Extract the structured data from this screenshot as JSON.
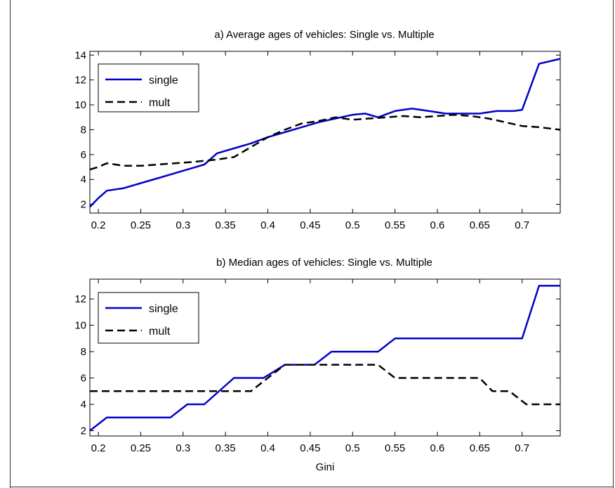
{
  "colors": {
    "single": "#0000c8",
    "mult": "#000000",
    "axis": "#000000",
    "background": "#ffffff"
  },
  "chart_data": [
    {
      "type": "line",
      "title": "a) Average ages of vehicles: Single vs. Multiple",
      "xlabel": "",
      "ylabel": "",
      "xlim": [
        0.19,
        0.745
      ],
      "ylim": [
        1.3,
        14.3
      ],
      "xticks": [
        0.2,
        0.25,
        0.3,
        0.35,
        0.4,
        0.45,
        0.5,
        0.55,
        0.6,
        0.65,
        0.7
      ],
      "xtick_labels": [
        "0.2",
        "0.25",
        "0.3",
        "0.35",
        "0.4",
        "0.45",
        "0.5",
        "0.55",
        "0.6",
        "0.65",
        "0.7"
      ],
      "yticks": [
        2,
        4,
        6,
        8,
        10,
        12,
        14
      ],
      "ytick_labels": [
        "2",
        "4",
        "6",
        "8",
        "10",
        "12",
        "14"
      ],
      "grid": false,
      "legend": {
        "location": "top-left",
        "entries": [
          "single",
          "mult"
        ]
      },
      "series": [
        {
          "name": "single",
          "style": "solid",
          "x": [
            0.19,
            0.2,
            0.21,
            0.23,
            0.25,
            0.27,
            0.29,
            0.31,
            0.325,
            0.34,
            0.36,
            0.38,
            0.4,
            0.42,
            0.44,
            0.46,
            0.48,
            0.5,
            0.515,
            0.53,
            0.55,
            0.57,
            0.59,
            0.61,
            0.63,
            0.65,
            0.67,
            0.69,
            0.7,
            0.72,
            0.745
          ],
          "y": [
            1.8,
            2.5,
            3.1,
            3.3,
            3.7,
            4.1,
            4.5,
            4.9,
            5.2,
            6.1,
            6.5,
            6.9,
            7.4,
            7.8,
            8.2,
            8.6,
            8.9,
            9.2,
            9.3,
            9.0,
            9.5,
            9.7,
            9.5,
            9.3,
            9.3,
            9.3,
            9.5,
            9.5,
            9.6,
            13.3,
            13.7
          ]
        },
        {
          "name": "mult",
          "style": "dashed",
          "x": [
            0.19,
            0.2,
            0.21,
            0.23,
            0.25,
            0.27,
            0.29,
            0.31,
            0.325,
            0.34,
            0.36,
            0.38,
            0.4,
            0.42,
            0.44,
            0.46,
            0.48,
            0.5,
            0.52,
            0.54,
            0.56,
            0.58,
            0.6,
            0.62,
            0.64,
            0.66,
            0.68,
            0.7,
            0.72,
            0.745
          ],
          "y": [
            4.8,
            5.0,
            5.3,
            5.1,
            5.1,
            5.2,
            5.3,
            5.4,
            5.5,
            5.6,
            5.8,
            6.6,
            7.4,
            8.0,
            8.5,
            8.7,
            9.0,
            8.8,
            8.9,
            9.0,
            9.1,
            9.0,
            9.1,
            9.2,
            9.1,
            8.9,
            8.6,
            8.3,
            8.2,
            8.0
          ]
        }
      ]
    },
    {
      "type": "line",
      "title": "b) Median ages of vehicles: Single vs. Multiple",
      "xlabel": "Gini",
      "ylabel": "",
      "xlim": [
        0.19,
        0.745
      ],
      "ylim": [
        1.6,
        13.5
      ],
      "xticks": [
        0.2,
        0.25,
        0.3,
        0.35,
        0.4,
        0.45,
        0.5,
        0.55,
        0.6,
        0.65,
        0.7
      ],
      "xtick_labels": [
        "0.2",
        "0.25",
        "0.3",
        "0.35",
        "0.4",
        "0.45",
        "0.5",
        "0.55",
        "0.6",
        "0.65",
        "0.7"
      ],
      "yticks": [
        2,
        4,
        6,
        8,
        10,
        12
      ],
      "ytick_labels": [
        "2",
        "4",
        "6",
        "8",
        "10",
        "12"
      ],
      "grid": false,
      "legend": {
        "location": "top-left",
        "entries": [
          "single",
          "mult"
        ]
      },
      "series": [
        {
          "name": "single",
          "style": "solid",
          "x": [
            0.19,
            0.21,
            0.285,
            0.305,
            0.325,
            0.36,
            0.395,
            0.42,
            0.455,
            0.475,
            0.53,
            0.55,
            0.7,
            0.72,
            0.745
          ],
          "y": [
            2,
            3,
            3,
            4,
            4,
            6,
            6,
            7,
            7,
            8,
            8,
            9,
            9,
            13,
            13
          ]
        },
        {
          "name": "mult",
          "style": "dashed",
          "x": [
            0.19,
            0.38,
            0.42,
            0.53,
            0.55,
            0.65,
            0.665,
            0.685,
            0.705,
            0.745
          ],
          "y": [
            5,
            5,
            7,
            7,
            6,
            6,
            5,
            5,
            4,
            4
          ]
        }
      ]
    }
  ]
}
